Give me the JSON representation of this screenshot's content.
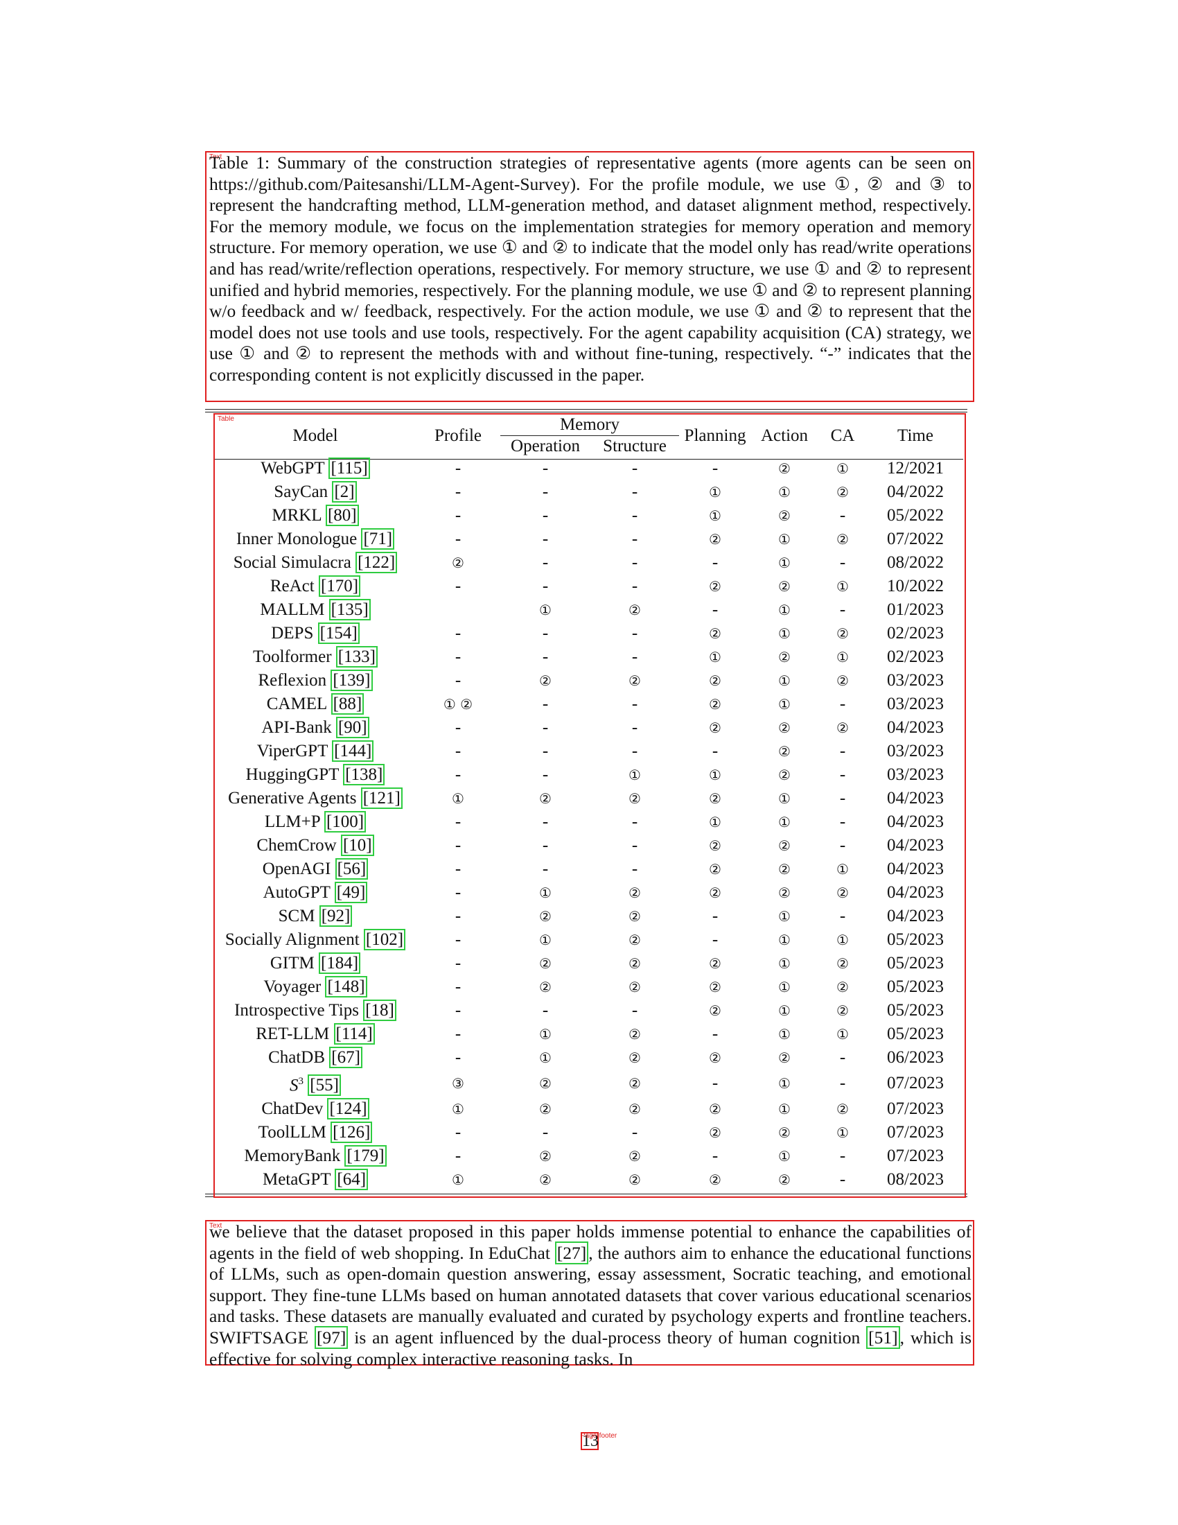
{
  "caption": {
    "tag": "Text",
    "text": "Table 1: Summary of the construction strategies of representative agents (more agents can be seen on https://github.com/Paitesanshi/LLM-Agent-Survey). For the profile module, we use ①, ② and ③ to represent the handcrafting method, LLM-generation method, and dataset alignment method, respectively. For the memory module, we focus on the implementation strategies for memory operation and memory structure. For memory operation, we use ① and ② to indicate that the model only has read/write operations and has read/write/reflection operations, respectively. For memory structure, we use ① and ② to represent unified and hybrid memories, respectively. For the planning module, we use ① and ② to represent planning w/o feedback and w/ feedback, respectively. For the action module, we use ① and ② to represent that the model does not use tools and use tools, respectively. For the agent capability acquisition (CA) strategy, we use ① and ② to represent the methods with and without fine-tuning, respectively. “-” indicates that the corresponding content is not explicitly discussed in the paper."
  },
  "table": {
    "tag": "Table",
    "headers": {
      "model": "Model",
      "profile": "Profile",
      "memory": "Memory",
      "operation": "Operation",
      "structure": "Structure",
      "planning": "Planning",
      "action": "Action",
      "ca": "CA",
      "time": "Time"
    },
    "rows": [
      {
        "model": "WebGPT",
        "cite": "[115]",
        "profile": "-",
        "operation": "-",
        "structure": "-",
        "planning": "-",
        "action": "②",
        "ca": "①",
        "time": "12/2021"
      },
      {
        "model": "SayCan",
        "cite": "[2]",
        "profile": "-",
        "operation": "-",
        "structure": "-",
        "planning": "①",
        "action": "①",
        "ca": "②",
        "time": "04/2022"
      },
      {
        "model": "MRKL",
        "cite": "[80]",
        "profile": "-",
        "operation": "-",
        "structure": "-",
        "planning": "①",
        "action": "②",
        "ca": "-",
        "time": "05/2022"
      },
      {
        "model": "Inner Monologue",
        "cite": "[71]",
        "profile": "-",
        "operation": "-",
        "structure": "-",
        "planning": "②",
        "action": "①",
        "ca": "②",
        "time": "07/2022"
      },
      {
        "model": "Social Simulacra",
        "cite": "[122]",
        "profile": "②",
        "operation": "-",
        "structure": "-",
        "planning": "-",
        "action": "①",
        "ca": "-",
        "time": "08/2022"
      },
      {
        "model": "ReAct",
        "cite": "[170]",
        "profile": "-",
        "operation": "-",
        "structure": "-",
        "planning": "②",
        "action": "②",
        "ca": "①",
        "time": "10/2022"
      },
      {
        "model": "MALLM",
        "cite": "[135]",
        "profile": "",
        "operation": "①",
        "structure": "②",
        "planning": "-",
        "action": "①",
        "ca": "-",
        "time": "01/2023"
      },
      {
        "model": "DEPS",
        "cite": "[154]",
        "profile": "-",
        "operation": "-",
        "structure": "-",
        "planning": "②",
        "action": "①",
        "ca": "②",
        "time": "02/2023"
      },
      {
        "model": "Toolformer",
        "cite": "[133]",
        "profile": "-",
        "operation": "-",
        "structure": "-",
        "planning": "①",
        "action": "②",
        "ca": "①",
        "time": "02/2023"
      },
      {
        "model": "Reflexion",
        "cite": "[139]",
        "profile": "-",
        "operation": "②",
        "structure": "②",
        "planning": "②",
        "action": "①",
        "ca": "②",
        "time": "03/2023"
      },
      {
        "model": "CAMEL",
        "cite": "[88]",
        "profile": "① ②",
        "operation": "-",
        "structure": "-",
        "planning": "②",
        "action": "①",
        "ca": "-",
        "time": "03/2023"
      },
      {
        "model": "API-Bank",
        "cite": "[90]",
        "profile": "-",
        "operation": "-",
        "structure": "-",
        "planning": "②",
        "action": "②",
        "ca": "②",
        "time": "04/2023"
      },
      {
        "model": "ViperGPT",
        "cite": "[144]",
        "profile": "-",
        "operation": "-",
        "structure": "-",
        "planning": "-",
        "action": "②",
        "ca": "-",
        "time": "03/2023"
      },
      {
        "model": "HuggingGPT",
        "cite": "[138]",
        "profile": "-",
        "operation": "-",
        "structure": "①",
        "planning": "①",
        "action": "②",
        "ca": "-",
        "time": "03/2023"
      },
      {
        "model": "Generative Agents",
        "cite": "[121]",
        "profile": "①",
        "operation": "②",
        "structure": "②",
        "planning": "②",
        "action": "①",
        "ca": "-",
        "time": "04/2023"
      },
      {
        "model": "LLM+P",
        "cite": "[100]",
        "profile": "-",
        "operation": "-",
        "structure": "-",
        "planning": "①",
        "action": "①",
        "ca": "-",
        "time": "04/2023"
      },
      {
        "model": "ChemCrow",
        "cite": "[10]",
        "profile": "-",
        "operation": "-",
        "structure": "-",
        "planning": "②",
        "action": "②",
        "ca": "-",
        "time": "04/2023"
      },
      {
        "model": "OpenAGI",
        "cite": "[56]",
        "profile": "-",
        "operation": "-",
        "structure": "-",
        "planning": "②",
        "action": "②",
        "ca": "①",
        "time": "04/2023"
      },
      {
        "model": "AutoGPT",
        "cite": "[49]",
        "profile": "-",
        "operation": "①",
        "structure": "②",
        "planning": "②",
        "action": "②",
        "ca": "②",
        "time": "04/2023"
      },
      {
        "model": "SCM",
        "cite": "[92]",
        "profile": "-",
        "operation": "②",
        "structure": "②",
        "planning": "-",
        "action": "①",
        "ca": "-",
        "time": "04/2023"
      },
      {
        "model": "Socially Alignment",
        "cite": "[102]",
        "profile": "-",
        "operation": "①",
        "structure": "②",
        "planning": "-",
        "action": "①",
        "ca": "①",
        "time": "05/2023"
      },
      {
        "model": "GITM",
        "cite": "[184]",
        "profile": "-",
        "operation": "②",
        "structure": "②",
        "planning": "②",
        "action": "①",
        "ca": "②",
        "time": "05/2023"
      },
      {
        "model": "Voyager",
        "cite": "[148]",
        "profile": "-",
        "operation": "②",
        "structure": "②",
        "planning": "②",
        "action": "①",
        "ca": "②",
        "time": "05/2023"
      },
      {
        "model": "Introspective Tips",
        "cite": "[18]",
        "profile": "-",
        "operation": "-",
        "structure": "-",
        "planning": "②",
        "action": "①",
        "ca": "②",
        "time": "05/2023"
      },
      {
        "model": "RET-LLM",
        "cite": "[114]",
        "profile": "-",
        "operation": "①",
        "structure": "②",
        "planning": "-",
        "action": "①",
        "ca": "①",
        "time": "05/2023"
      },
      {
        "model": "ChatDB",
        "cite": "[67]",
        "profile": "-",
        "operation": "①",
        "structure": "②",
        "planning": "②",
        "action": "②",
        "ca": "-",
        "time": "06/2023"
      },
      {
        "model": "S",
        "sup": "3",
        "cite": "[55]",
        "profile": "③",
        "operation": "②",
        "structure": "②",
        "planning": "-",
        "action": "①",
        "ca": "-",
        "time": "07/2023"
      },
      {
        "model": "ChatDev",
        "cite": "[124]",
        "profile": "①",
        "operation": "②",
        "structure": "②",
        "planning": "②",
        "action": "①",
        "ca": "②",
        "time": "07/2023"
      },
      {
        "model": "ToolLLM",
        "cite": "[126]",
        "profile": "-",
        "operation": "-",
        "structure": "-",
        "planning": "②",
        "action": "②",
        "ca": "①",
        "time": "07/2023"
      },
      {
        "model": "MemoryBank",
        "cite": "[179]",
        "profile": "-",
        "operation": "②",
        "structure": "②",
        "planning": "-",
        "action": "①",
        "ca": "-",
        "time": "07/2023"
      },
      {
        "model": "MetaGPT",
        "cite": "[64]",
        "profile": "①",
        "operation": "②",
        "structure": "②",
        "planning": "②",
        "action": "②",
        "ca": "-",
        "time": "08/2023"
      }
    ]
  },
  "body": {
    "tag": "Text",
    "segments": [
      {
        "text": "we believe that the dataset proposed in this paper holds immense potential to enhance the capabilities of agents in the field of web shopping. In EduChat "
      },
      {
        "cite": "[27]"
      },
      {
        "text": ", the authors aim to enhance the educational functions of LLMs, such as open-domain question answering, essay assessment, Socratic teaching, and emotional support. They fine-tune LLMs based on human annotated datasets that cover various educational scenarios and tasks. These datasets are manually evaluated and curated by psychology experts and frontline teachers. SWIFTSAGE "
      },
      {
        "cite": "[97]"
      },
      {
        "text": " is an agent influenced by the dual-process theory of human cognition "
      },
      {
        "cite": "[51]"
      },
      {
        "text": ", which is effective for solving complex interactive reasoning tasks. In"
      }
    ]
  },
  "footer": {
    "tag": "Page-footer",
    "page_number": "13"
  },
  "colors": {
    "layout_box": "#e02020",
    "citation_box": "#2ecc40"
  }
}
